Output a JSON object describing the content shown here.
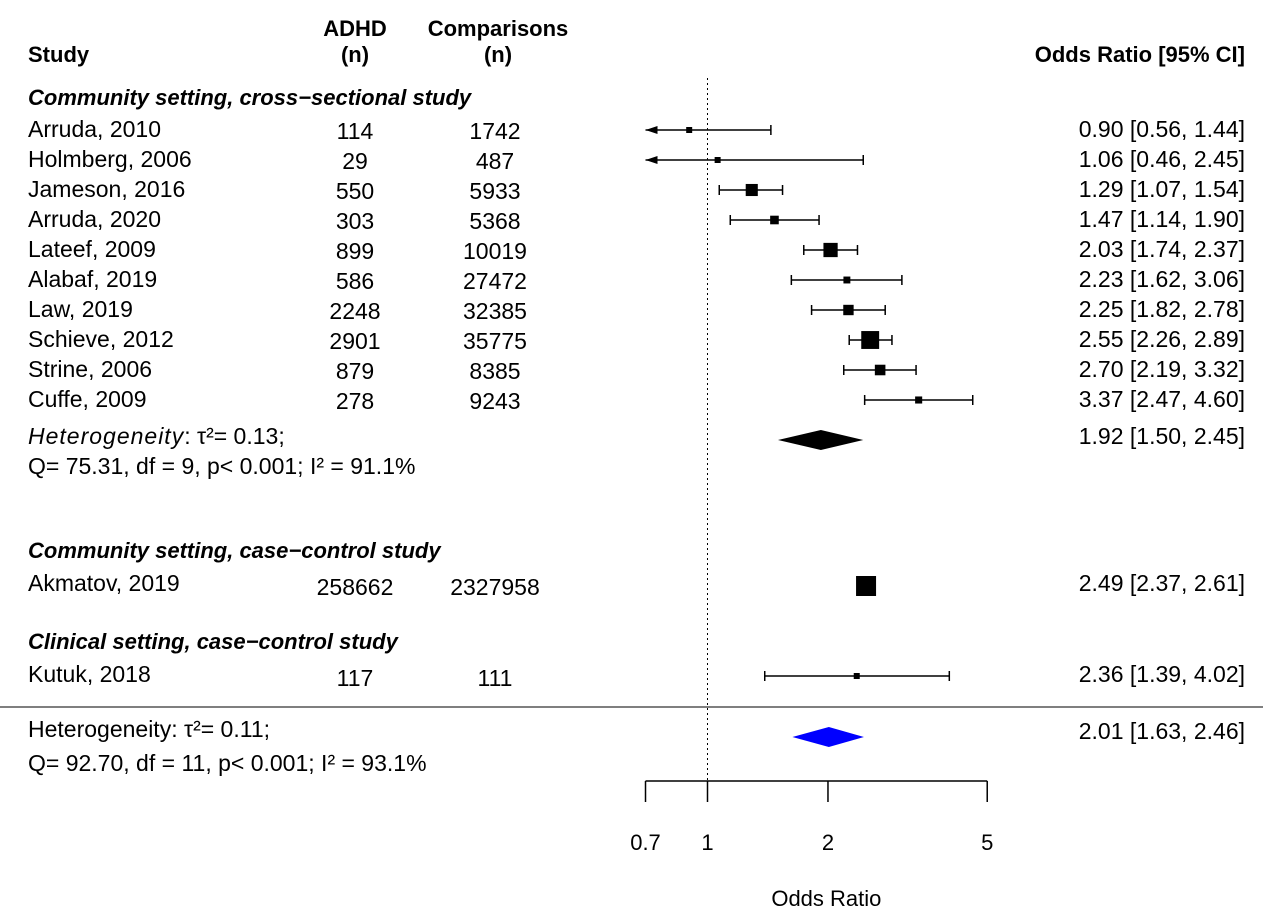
{
  "headers": {
    "study": "Study",
    "adhd_line1": "ADHD",
    "adhd_line2": "(n)",
    "comp_line1": "Comparisons",
    "comp_line2": "(n)",
    "or": "Odds Ratio [95% CI]"
  },
  "groups": [
    {
      "label": "Community setting, cross−sectional study",
      "studies": [
        {
          "study": "Arruda, 2010",
          "adhd": "114",
          "comp": "1742",
          "or": 0.9,
          "lo": 0.56,
          "hi": 1.44,
          "ci_text": "0.90 [0.56, 1.44]"
        },
        {
          "study": "Holmberg, 2006",
          "adhd": "29",
          "comp": "487",
          "or": 1.06,
          "lo": 0.46,
          "hi": 2.45,
          "ci_text": "1.06 [0.46, 2.45]"
        },
        {
          "study": "Jameson, 2016",
          "adhd": "550",
          "comp": "5933",
          "or": 1.29,
          "lo": 1.07,
          "hi": 1.54,
          "ci_text": "1.29 [1.07, 1.54]"
        },
        {
          "study": "Arruda, 2020",
          "adhd": "303",
          "comp": "5368",
          "or": 1.47,
          "lo": 1.14,
          "hi": 1.9,
          "ci_text": "1.47 [1.14, 1.90]"
        },
        {
          "study": "Lateef, 2009",
          "adhd": "899",
          "comp": "10019",
          "or": 2.03,
          "lo": 1.74,
          "hi": 2.37,
          "ci_text": "2.03 [1.74, 2.37]"
        },
        {
          "study": "Alabaf, 2019",
          "adhd": "586",
          "comp": "27472",
          "or": 2.23,
          "lo": 1.62,
          "hi": 3.06,
          "ci_text": "2.23 [1.62, 3.06]"
        },
        {
          "study": "Law, 2019",
          "adhd": "2248",
          "comp": "32385",
          "or": 2.25,
          "lo": 1.82,
          "hi": 2.78,
          "ci_text": "2.25 [1.82, 2.78]"
        },
        {
          "study": "Schieve, 2012",
          "adhd": "2901",
          "comp": "35775",
          "or": 2.55,
          "lo": 2.26,
          "hi": 2.89,
          "ci_text": "2.55 [2.26, 2.89]"
        },
        {
          "study": "Strine, 2006",
          "adhd": "879",
          "comp": "8385",
          "or": 2.7,
          "lo": 2.19,
          "hi": 3.32,
          "ci_text": "2.70 [2.19, 3.32]"
        },
        {
          "study": "Cuffe, 2009",
          "adhd": "278",
          "comp": "9243",
          "or": 3.37,
          "lo": 2.47,
          "hi": 4.6,
          "ci_text": "3.37 [2.47, 4.60]"
        }
      ],
      "summary": {
        "het_word": "Heterogeneity",
        "het_rest": ": τ²= 0.13;",
        "stats_line": "Q= 75.31, df = 9, p< 0.001; I² = 91.1%",
        "or": 1.92,
        "lo": 1.5,
        "hi": 2.45,
        "ci_text": "1.92 [1.50, 2.45]"
      }
    },
    {
      "label": "Community setting, case−control study",
      "studies": [
        {
          "study": "Akmatov, 2019",
          "adhd": "258662",
          "comp": "2327958",
          "or": 2.49,
          "lo": 2.37,
          "hi": 2.61,
          "ci_text": "2.49 [2.37, 2.61]"
        }
      ]
    },
    {
      "label": "Clinical setting, case−control study",
      "studies": [
        {
          "study": "Kutuk, 2018",
          "adhd": "117",
          "comp": "111",
          "or": 2.36,
          "lo": 1.39,
          "hi": 4.02,
          "ci_text": "2.36 [1.39, 4.02]"
        }
      ]
    }
  ],
  "overall": {
    "het_line": "Heterogeneity: τ²= 0.11;",
    "stats_line": "Q= 92.70, df = 11, p< 0.001; I² = 93.1%",
    "or": 2.01,
    "lo": 1.63,
    "hi": 2.46,
    "ci_text": "2.01 [1.63, 2.46]"
  },
  "chart_data": {
    "type": "forest",
    "x_scale": "log",
    "xlabel": "Odds Ratio",
    "xlim": [
      0.7,
      5
    ],
    "ticks": [
      0.7,
      1,
      2,
      5
    ],
    "tick_labels": [
      "0.7",
      "1",
      "2",
      "5"
    ],
    "reference_line": 1,
    "series": [
      {
        "name": "Community setting, cross−sectional study",
        "categories": [
          "Arruda, 2010",
          "Holmberg, 2006",
          "Jameson, 2016",
          "Arruda, 2020",
          "Lateef, 2009",
          "Alabaf, 2019",
          "Law, 2019",
          "Schieve, 2012",
          "Strine, 2006",
          "Cuffe, 2009"
        ],
        "values": [
          0.9,
          1.06,
          1.29,
          1.47,
          2.03,
          2.23,
          2.25,
          2.55,
          2.7,
          3.37
        ]
      },
      {
        "name": "Community setting, case−control study",
        "categories": [
          "Akmatov, 2019"
        ],
        "values": [
          2.49
        ]
      },
      {
        "name": "Clinical setting, case−control study",
        "categories": [
          "Kutuk, 2018"
        ],
        "values": [
          2.36
        ]
      }
    ],
    "pooled": [
      {
        "group": "Community setting, cross−sectional study",
        "or": 1.92,
        "lo": 1.5,
        "hi": 2.45
      },
      {
        "group": "overall",
        "or": 2.01,
        "lo": 1.63,
        "hi": 2.46
      }
    ],
    "colors": {
      "subgroup_diamond": "#000000",
      "overall_diamond": "#0000ff",
      "squares": "#000000"
    }
  }
}
